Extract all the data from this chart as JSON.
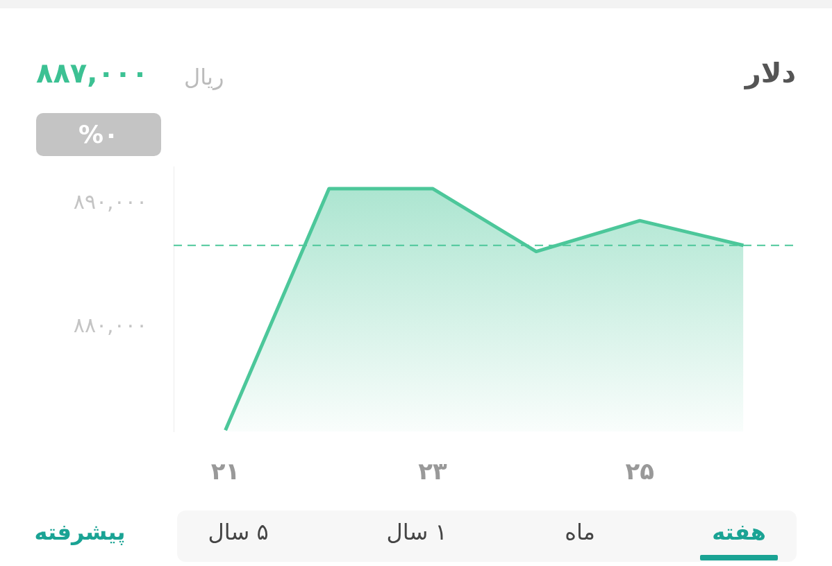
{
  "chart_data": {
    "type": "area",
    "title": "دلار",
    "annotations": [
      "۸۸۷,۰۰۰",
      "ریال",
      "%۰",
      "هفته",
      "ماه",
      "۱ سال",
      "۵ سال",
      "پیشرفته"
    ],
    "x": [
      21,
      22,
      23,
      24,
      25,
      26
    ],
    "series": [
      {
        "color": "#4cc79a",
        "values": [
          871600,
          891200,
          891200,
          886100,
          888600,
          886600
        ]
      }
    ],
    "xlim": [
      20.5,
      26.5
    ],
    "xticks": [
      {
        "value": 21,
        "label": "۲۱"
      },
      {
        "value": 23,
        "label": "۲۳"
      },
      {
        "value": 25,
        "label": "۲۵"
      }
    ],
    "ylim": [
      871500,
      893000
    ],
    "yticks": [
      {
        "value": 880000,
        "label": "۸۸۰,۰۰۰"
      },
      {
        "value": 890000,
        "label": "۸۹۰,۰۰۰"
      }
    ],
    "ref_lines": [
      {
        "axis": "y",
        "value": 886600,
        "color": "#4cc79a",
        "line_style": "dashed"
      }
    ],
    "grid": false,
    "legend": false,
    "marker": "none",
    "line_style": "solid"
  }
}
